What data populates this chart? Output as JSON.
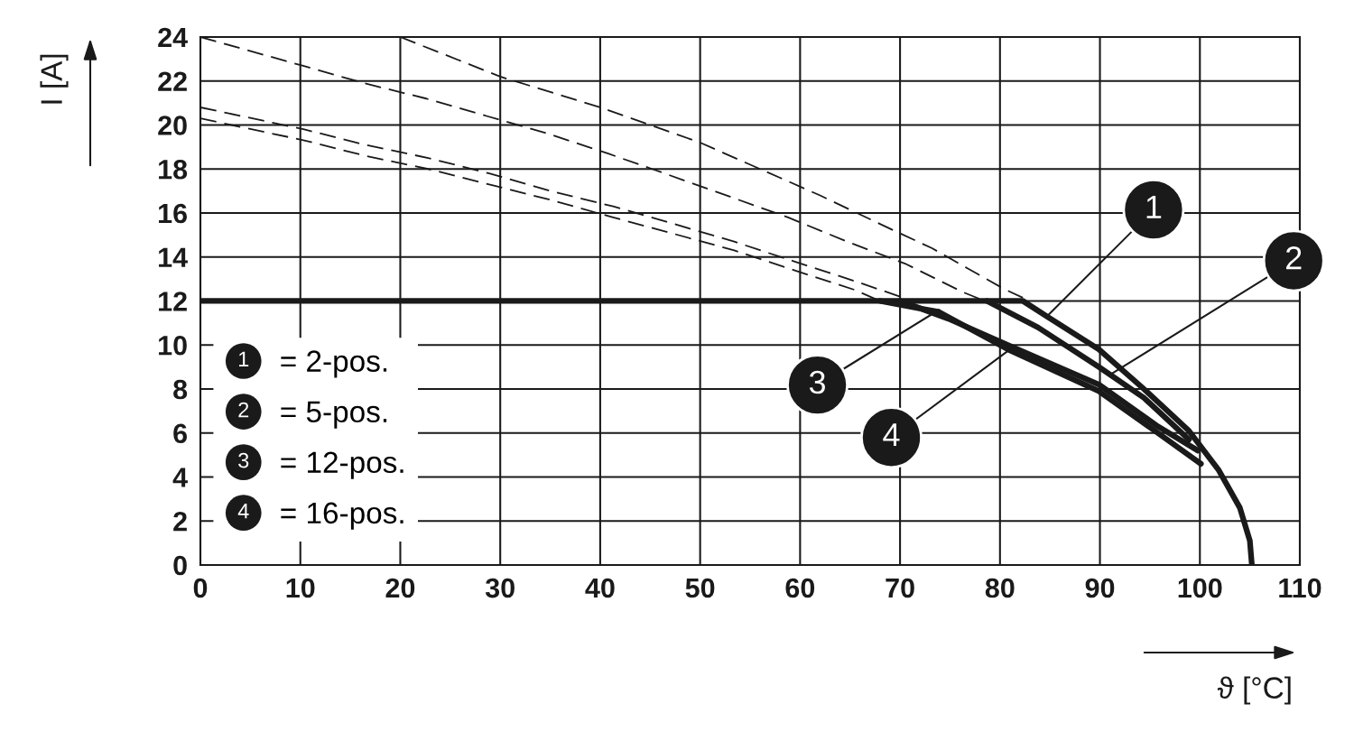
{
  "chart_data": {
    "type": "line",
    "xlabel": "ϑ [°C]",
    "ylabel": "I [A]",
    "xlim": [
      0,
      110
    ],
    "xticks": [
      0,
      10,
      20,
      30,
      40,
      50,
      60,
      70,
      80,
      90,
      100,
      110
    ],
    "ylim": [
      0,
      24
    ],
    "yticks": [
      0,
      2,
      4,
      6,
      8,
      10,
      12,
      14,
      16,
      18,
      20,
      22,
      24
    ],
    "grid": true,
    "legend": "bottom left",
    "marker": "none",
    "series": [
      {
        "name": "= 2-pos.",
        "color": "#1a1a1a",
        "line_style": "solid",
        "x": [
          0,
          82.3,
          84.7,
          89.9,
          94.4,
          98.9,
          101.9,
          104,
          105,
          105.2
        ],
        "values": [
          12,
          12,
          11.3,
          9.8,
          8.0,
          6.1,
          4.3,
          2.6,
          1.1,
          0
        ]
      },
      {
        "name": "= 5-pos.",
        "color": "#1a1a1a",
        "line_style": "solid",
        "x": [
          78.7,
          83.8,
          89.9,
          94.4,
          98.9
        ],
        "values": [
          12,
          10.8,
          9.0,
          7.6,
          5.7
        ]
      },
      {
        "name": "= 12-pos.",
        "color": "#1a1a1a",
        "line_style": "solid",
        "x": [
          70,
          74.8,
          80.8,
          89.9,
          95.8,
          99.8
        ],
        "values": [
          12,
          11.2,
          10.0,
          8.2,
          6.3,
          5.2
        ]
      },
      {
        "name": "= 16-pos.",
        "color": "#1a1a1a",
        "line_style": "solid",
        "x": [
          68,
          73.9,
          80.8,
          89.9,
          95.8,
          100.1
        ],
        "values": [
          12,
          11.5,
          9.8,
          7.9,
          6.0,
          4.6
        ]
      },
      {
        "color": "#1a1a1a",
        "line_style": "dashed",
        "x": [
          20,
          30,
          40,
          50,
          58,
          62,
          69.4,
          73.2,
          76.7,
          80.4,
          83
        ],
        "values": [
          24,
          22.2,
          20.8,
          19.2,
          17.6,
          16.8,
          15.2,
          14.4,
          13.5,
          12.55,
          12
        ]
      },
      {
        "color": "#1a1a1a",
        "line_style": "dashed",
        "x": [
          0,
          10.2,
          16.4,
          22.6,
          28.7,
          34.8,
          40.8,
          45.2,
          58.8,
          64.7,
          70.5,
          76.3,
          78.5
        ],
        "values": [
          24,
          22.7,
          21.9,
          21.2,
          20.4,
          19.6,
          18.7,
          18,
          15.8,
          14.7,
          13.7,
          12.4,
          12
        ]
      },
      {
        "color": "#1a1a1a",
        "line_style": "dashed",
        "x": [
          0,
          10.4,
          16.5,
          22.8,
          28.9,
          35,
          41.3,
          47.4,
          53.4,
          59.4,
          65.5,
          70,
          71
        ],
        "values": [
          20.8,
          19.8,
          19.1,
          18.5,
          17.8,
          17,
          16.3,
          15.5,
          14.7,
          13.8,
          12.9,
          12.2,
          12
        ]
      },
      {
        "color": "#1a1a1a",
        "line_style": "dashed",
        "x": [
          0,
          10.4,
          16.5,
          22.8,
          28.9,
          35,
          41.3,
          47.4,
          53.4,
          59.4,
          65.5,
          68
        ],
        "values": [
          20.3,
          19.3,
          18.6,
          18,
          17.3,
          16.6,
          15.8,
          15.05,
          14.3,
          13.4,
          12.5,
          12
        ]
      }
    ],
    "annotations": [
      {
        "text": "1",
        "x": 84.7,
        "y": 11.3
      },
      {
        "text": "2",
        "x": 91.2,
        "y": 8.7
      },
      {
        "text": "3",
        "x": 73.9,
        "y": 11.6
      },
      {
        "text": "4",
        "x": 81.3,
        "y": 9.9
      }
    ]
  }
}
